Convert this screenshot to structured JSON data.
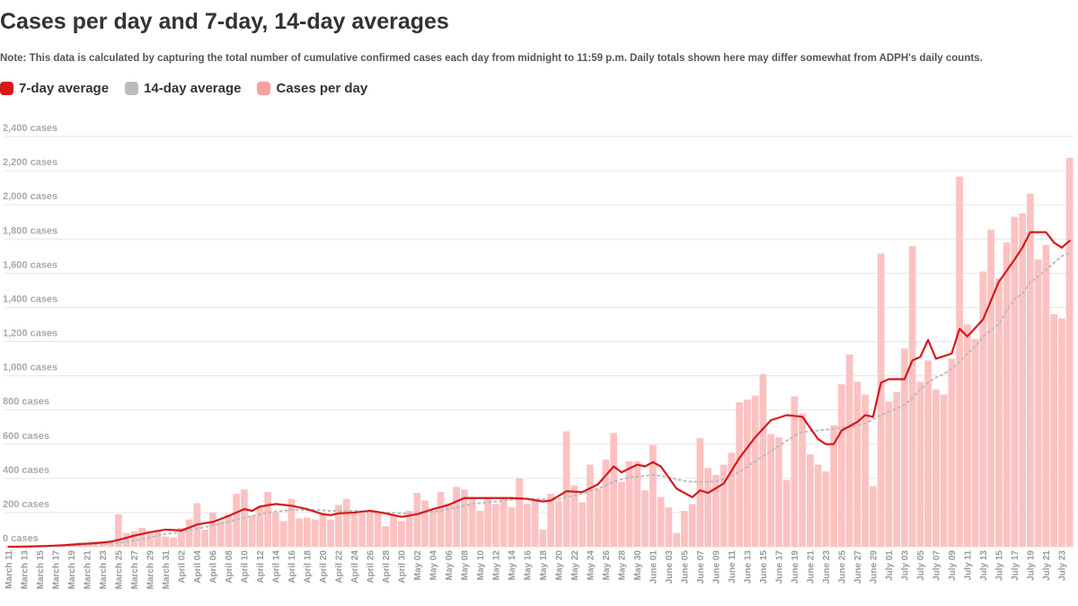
{
  "chart_data": {
    "type": "bar",
    "title": "Cases per day and 7-day, 14-day averages",
    "subtitle": "Note: This data is calculated by capturing the total number of cumulative confirmed cases each day from midnight to 11:59 p.m. Daily totals shown here may differ somewhat from ADPH's daily counts.",
    "grid": true,
    "ylim": [
      0,
      2400
    ],
    "yticks": [
      {
        "value": 0,
        "label": "0 cases"
      },
      {
        "value": 200,
        "label": "200 cases"
      },
      {
        "value": 400,
        "label": "400 cases"
      },
      {
        "value": 600,
        "label": "600 cases"
      },
      {
        "value": 800,
        "label": "800 cases"
      },
      {
        "value": 1000,
        "label": "1,000 cases"
      },
      {
        "value": 1200,
        "label": "1,200 cases"
      },
      {
        "value": 1400,
        "label": "1,400 cases"
      },
      {
        "value": 1600,
        "label": "1,600 cases"
      },
      {
        "value": 1800,
        "label": "1,800 cases"
      },
      {
        "value": 2000,
        "label": "2,000 cases"
      },
      {
        "value": 2200,
        "label": "2,200 cases"
      },
      {
        "value": 2400,
        "label": "2,400 cases"
      }
    ],
    "categories": [
      "March 11",
      null,
      "March 13",
      null,
      "March 15",
      null,
      "March 17",
      null,
      "March 19",
      null,
      "March 21",
      null,
      "March 23",
      null,
      "March 25",
      null,
      "March 27",
      null,
      "March 29",
      null,
      "March 31",
      null,
      "April 02",
      null,
      "April 04",
      null,
      "April 06",
      null,
      "April 08",
      null,
      "April 10",
      null,
      "April 12",
      null,
      "April 14",
      null,
      "April 16",
      null,
      "April 18",
      null,
      "April 20",
      null,
      "April 22",
      null,
      "April 24",
      null,
      "April 26",
      null,
      "April 28",
      null,
      "April 30",
      null,
      "May 02",
      null,
      "May 04",
      null,
      "May 06",
      null,
      "May 08",
      null,
      "May 10",
      null,
      "May 12",
      null,
      "May 14",
      null,
      "May 16",
      null,
      "May 18",
      null,
      "May 20",
      null,
      "May 22",
      null,
      "May 24",
      null,
      "May 26",
      null,
      "May 28",
      null,
      "May 30",
      null,
      "June 01",
      null,
      "June 03",
      null,
      "June 05",
      null,
      "June 07",
      null,
      "June 09",
      null,
      "June 11",
      null,
      "June 13",
      null,
      "June 15",
      null,
      "June 17",
      null,
      "June 19",
      null,
      "June 21",
      null,
      "June 23",
      null,
      "June 25",
      null,
      "June 27",
      null,
      "June 29",
      null,
      "July 01",
      null,
      "July 03",
      null,
      "July 05",
      null,
      "July 07",
      null,
      "July 09",
      null,
      "July 11",
      null,
      "July 13",
      null,
      "July 15",
      null,
      "July 17",
      null,
      "July 19",
      null,
      "July 21",
      null,
      "July 23",
      null
    ],
    "series": [
      {
        "name": "7-day average",
        "type": "line",
        "color": "#d7191c",
        "style": "solid",
        "values": [
          0,
          0,
          1,
          2,
          3,
          5,
          7,
          9,
          12,
          15,
          18,
          21,
          25,
          30,
          40,
          52,
          65,
          75,
          85,
          93,
          100,
          98,
          95,
          112,
          130,
          138,
          145,
          162,
          180,
          200,
          220,
          210,
          235,
          243,
          250,
          245,
          240,
          230,
          220,
          205,
          190,
          185,
          195,
          198,
          200,
          205,
          210,
          203,
          195,
          185,
          175,
          182,
          190,
          205,
          220,
          232,
          245,
          265,
          285,
          285,
          285,
          285,
          285,
          285,
          285,
          283,
          280,
          272,
          265,
          270,
          298,
          325,
          322,
          320,
          342,
          365,
          418,
          470,
          435,
          458,
          480,
          470,
          495,
          470,
          405,
          340,
          315,
          290,
          330,
          315,
          342,
          370,
          445,
          520,
          580,
          640,
          690,
          740,
          755,
          770,
          765,
          760,
          695,
          630,
          600,
          600,
          680,
          705,
          730,
          770,
          760,
          960,
          980,
          980,
          980,
          1090,
          1110,
          1210,
          1100,
          1115,
          1130,
          1275,
          1230,
          1280,
          1330,
          1440,
          1550,
          1615,
          1680,
          1750,
          1840,
          1840,
          1840,
          1780,
          1750,
          1790
        ]
      },
      {
        "name": "14-day average",
        "type": "line",
        "color": "#bbbbbb",
        "style": "dotted",
        "values": [
          0,
          0,
          0,
          1,
          2,
          3,
          4,
          5,
          7,
          9,
          11,
          13,
          15,
          18,
          22,
          28,
          35,
          45,
          55,
          65,
          75,
          80,
          88,
          95,
          105,
          115,
          125,
          135,
          145,
          160,
          170,
          180,
          190,
          200,
          205,
          210,
          215,
          215,
          215,
          215,
          213,
          210,
          210,
          210,
          210,
          208,
          205,
          203,
          200,
          198,
          195,
          195,
          198,
          200,
          205,
          210,
          220,
          230,
          240,
          250,
          255,
          260,
          265,
          270,
          275,
          280,
          280,
          280,
          278,
          275,
          280,
          290,
          300,
          310,
          325,
          340,
          360,
          380,
          395,
          405,
          410,
          415,
          420,
          415,
          405,
          395,
          385,
          380,
          380,
          380,
          385,
          395,
          415,
          440,
          470,
          500,
          530,
          560,
          590,
          620,
          650,
          670,
          675,
          680,
          685,
          690,
          695,
          700,
          710,
          720,
          745,
          770,
          790,
          810,
          830,
          870,
          920,
          960,
          990,
          1010,
          1040,
          1080,
          1130,
          1170,
          1230,
          1270,
          1300,
          1380,
          1450,
          1480,
          1550,
          1580,
          1620,
          1660,
          1700,
          1720
        ]
      },
      {
        "name": "Cases per day",
        "type": "bar",
        "color": "#fcc2c2",
        "legend_color": "#f7a1a1",
        "values": [
          1,
          0,
          3,
          6,
          10,
          10,
          10,
          15,
          20,
          25,
          25,
          28,
          30,
          35,
          190,
          80,
          90,
          110,
          80,
          95,
          60,
          55,
          110,
          160,
          255,
          100,
          200,
          150,
          190,
          310,
          335,
          180,
          240,
          320,
          200,
          150,
          280,
          165,
          170,
          160,
          200,
          160,
          245,
          280,
          205,
          195,
          200,
          200,
          120,
          185,
          150,
          210,
          315,
          270,
          220,
          320,
          255,
          350,
          335,
          290,
          210,
          290,
          250,
          280,
          230,
          400,
          250,
          270,
          100,
          310,
          270,
          675,
          360,
          260,
          480,
          340,
          510,
          665,
          380,
          500,
          500,
          330,
          595,
          290,
          230,
          80,
          210,
          250,
          635,
          460,
          420,
          480,
          550,
          845,
          860,
          885,
          1010,
          660,
          640,
          390,
          880,
          780,
          540,
          480,
          440,
          710,
          950,
          1125,
          965,
          890,
          355,
          1715,
          850,
          905,
          1160,
          1760,
          965,
          1090,
          920,
          890,
          1100,
          2165,
          1300,
          1215,
          1610,
          1855,
          1570,
          1780,
          1930,
          1950,
          2065,
          1680,
          1765,
          1360,
          1335,
          2275
        ]
      }
    ]
  }
}
